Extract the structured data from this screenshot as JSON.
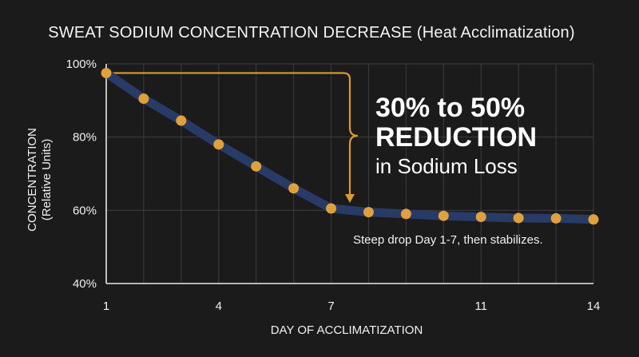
{
  "chart_data": {
    "type": "line",
    "title": "SWEAT SODIUM CONCENTRATION DECREASE (Heat Acclimatization)",
    "xlabel": "DAY OF ACCLIMATIZATION",
    "ylabel": "CONCENTRATION",
    "ylabel_sub": "(Relative Units)",
    "x_ticks": [
      1,
      4,
      7,
      11,
      14
    ],
    "y_ticks": [
      "40%",
      "60%",
      "80%",
      "100%"
    ],
    "xlim": [
      1,
      14
    ],
    "ylim": [
      40,
      100
    ],
    "grid": true,
    "series": [
      {
        "x": [
          1,
          2,
          3,
          4,
          5,
          6,
          7,
          8,
          9,
          10,
          11,
          12,
          13,
          14
        ],
        "values": [
          97.5,
          90.5,
          84.5,
          78,
          72,
          66,
          60.5,
          59.5,
          59,
          58.5,
          58.2,
          57.9,
          57.8,
          57.5
        ]
      }
    ],
    "colors": {
      "line": "#283a66",
      "marker": "#e0a13a",
      "annotation": "#d89b34"
    },
    "annotation": {
      "line1": "30% to 50%",
      "line2": "REDUCTION",
      "line3": "in Sodium Loss"
    },
    "note": "Steep drop Day 1-7, then stabilizes."
  }
}
